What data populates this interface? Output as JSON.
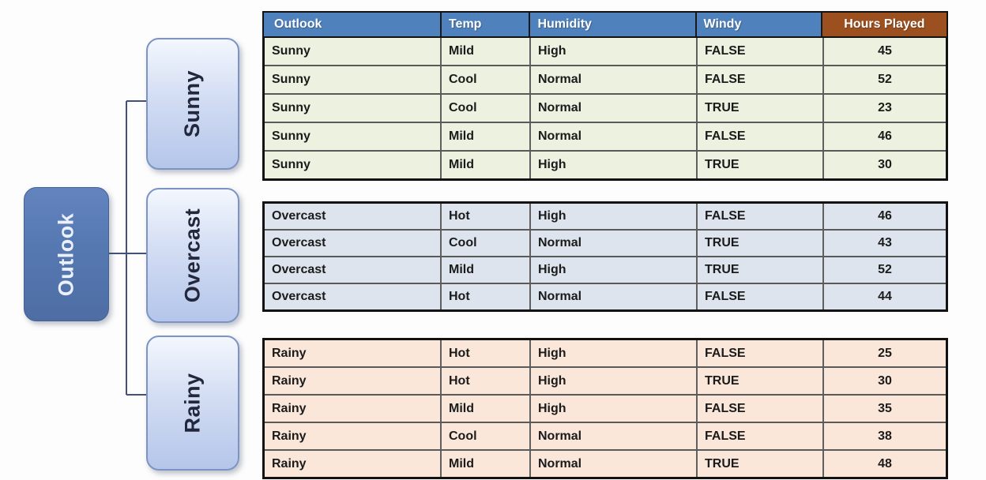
{
  "diagram": {
    "root": {
      "label": "Outlook"
    },
    "children": [
      {
        "label": "Sunny"
      },
      {
        "label": "Overcast"
      },
      {
        "label": "Rainy"
      }
    ],
    "colors": {
      "root_fill": "#5a7cb8",
      "child_fill_light": "#f3f7fe",
      "child_fill_dark": "#b4c6ea",
      "child_border": "#7d93c4",
      "connector": "#44507a"
    }
  },
  "table": {
    "headers": [
      "Outlook",
      "Temp",
      "Humidity",
      "Windy",
      "Hours Played"
    ],
    "header_bg": "#4f81bd",
    "hours_header_bg": "#9c4f1f",
    "groups": [
      {
        "name": "sunny",
        "bg": "#ecf1e0",
        "rows": [
          [
            "Sunny",
            "Mild",
            "High",
            "FALSE",
            "45"
          ],
          [
            "Sunny",
            "Cool",
            "Normal",
            "FALSE",
            "52"
          ],
          [
            "Sunny",
            "Cool",
            "Normal",
            "TRUE",
            "23"
          ],
          [
            "Sunny",
            "Mild",
            "Normal",
            "FALSE",
            "46"
          ],
          [
            "Sunny",
            "Mild",
            "High",
            "TRUE",
            "30"
          ]
        ]
      },
      {
        "name": "overcast",
        "bg": "#dde4ee",
        "rows": [
          [
            "Overcast",
            "Hot",
            "High",
            "FALSE",
            "46"
          ],
          [
            "Overcast",
            "Cool",
            "Normal",
            "TRUE",
            "43"
          ],
          [
            "Overcast",
            "Mild",
            "High",
            "TRUE",
            "52"
          ],
          [
            "Overcast",
            "Hot",
            "Normal",
            "FALSE",
            "44"
          ]
        ]
      },
      {
        "name": "rainy",
        "bg": "#fae7da",
        "rows": [
          [
            "Rainy",
            "Hot",
            "High",
            "FALSE",
            "25"
          ],
          [
            "Rainy",
            "Hot",
            "High",
            "TRUE",
            "30"
          ],
          [
            "Rainy",
            "Mild",
            "High",
            "FALSE",
            "35"
          ],
          [
            "Rainy",
            "Cool",
            "Normal",
            "FALSE",
            "38"
          ],
          [
            "Rainy",
            "Mild",
            "Normal",
            "TRUE",
            "48"
          ]
        ]
      }
    ]
  }
}
